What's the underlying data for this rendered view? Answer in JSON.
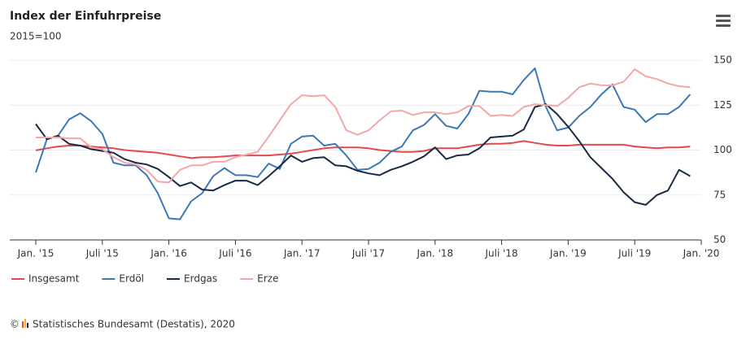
{
  "chart_data": {
    "type": "line",
    "title": "Index der Einfuhrpreise",
    "subtitle": "2015=100",
    "source": "Statistisches Bundesamt (Destatis), 2020",
    "copyright": "©",
    "categories": [
      "Jan. '15",
      null,
      null,
      null,
      null,
      null,
      "Juli '15",
      null,
      null,
      null,
      null,
      null,
      "Jan. '16",
      null,
      null,
      null,
      null,
      null,
      "Juli '16",
      null,
      null,
      null,
      null,
      null,
      "Jan. '17",
      null,
      null,
      null,
      null,
      null,
      "Juli '17",
      null,
      null,
      null,
      null,
      null,
      "Jan. '18",
      null,
      null,
      null,
      null,
      null,
      "Juli '18",
      null,
      null,
      null,
      null,
      null,
      "Jan. '19",
      null,
      null,
      null,
      null,
      null,
      "Juli '19",
      null,
      null,
      null,
      null,
      null,
      "Jan. '20"
    ],
    "ylim": [
      50,
      150
    ],
    "yticks": [
      50,
      75,
      100,
      125,
      150
    ],
    "grid": true,
    "legend": "bottom",
    "series": [
      {
        "name": "Insgesamt",
        "color": "#e5484d",
        "values": [
          99.8,
          101,
          102,
          102.5,
          102.5,
          102,
          101.5,
          101,
          100,
          99.5,
          99,
          98.5,
          97.5,
          96.5,
          95.5,
          96,
          96,
          96.5,
          97,
          97,
          97,
          97,
          97.5,
          98,
          99,
          100,
          101,
          101.5,
          101.5,
          101.5,
          101,
          100,
          99.5,
          99,
          99,
          99.5,
          101,
          101,
          101,
          102,
          103,
          103.5,
          103.5,
          104,
          105,
          104,
          103,
          102.5,
          102.5,
          103,
          103,
          103,
          103,
          103,
          102,
          101.5,
          101,
          101.5,
          101.5,
          102,
          null
        ]
      },
      {
        "name": "Erdöl",
        "color": "#3b78b5",
        "values": [
          87.5,
          106,
          108,
          117,
          120.5,
          116,
          109,
          93,
          91.5,
          91.5,
          86,
          76,
          62,
          61.5,
          71.5,
          76,
          85.5,
          90,
          86,
          86,
          85,
          92.5,
          89.5,
          103.5,
          107.5,
          108,
          102.5,
          103.5,
          97,
          89,
          89.5,
          93,
          99,
          102,
          111,
          114,
          120,
          113.5,
          112,
          120,
          133,
          132.5,
          132.5,
          131,
          139,
          145.5,
          124,
          111,
          112.5,
          119,
          124,
          131,
          136.5,
          124,
          122.5,
          115.5,
          120,
          120,
          124,
          131,
          null
        ]
      },
      {
        "name": "Erdgas",
        "color": "#1b2a44",
        "values": [
          114.5,
          106,
          108,
          103.5,
          102.5,
          100.5,
          99.5,
          98.5,
          95,
          93,
          92,
          89.5,
          85,
          80,
          82,
          78,
          77.5,
          80.5,
          83,
          83,
          80.5,
          85.5,
          91,
          97,
          93.5,
          95.5,
          96,
          91.5,
          91,
          88.5,
          87,
          86,
          89,
          91,
          93.5,
          96.5,
          101.5,
          95,
          97,
          97.5,
          101,
          107,
          107.5,
          108,
          111.5,
          124,
          125.5,
          120,
          113,
          105,
          96,
          90,
          84,
          76.5,
          71,
          69.5,
          75,
          77.5,
          89,
          85.5,
          null
        ]
      },
      {
        "name": "Erze",
        "color": "#f4a7a9",
        "values": [
          107,
          107,
          107,
          106.5,
          106.5,
          101.5,
          100.5,
          96,
          93,
          92,
          89,
          82.5,
          82,
          89,
          91.5,
          91.5,
          93.5,
          93.5,
          96,
          97.5,
          99,
          107.5,
          116.5,
          125.5,
          130.5,
          130,
          130.5,
          124,
          111,
          108.5,
          111,
          116.5,
          121.5,
          122,
          119.5,
          121,
          121,
          120,
          121,
          124.5,
          124.5,
          119,
          119.5,
          119,
          124,
          125.5,
          125,
          124.5,
          129,
          135,
          137,
          136,
          136,
          138,
          145,
          141,
          139.5,
          137,
          135.5,
          135,
          null
        ]
      }
    ]
  }
}
